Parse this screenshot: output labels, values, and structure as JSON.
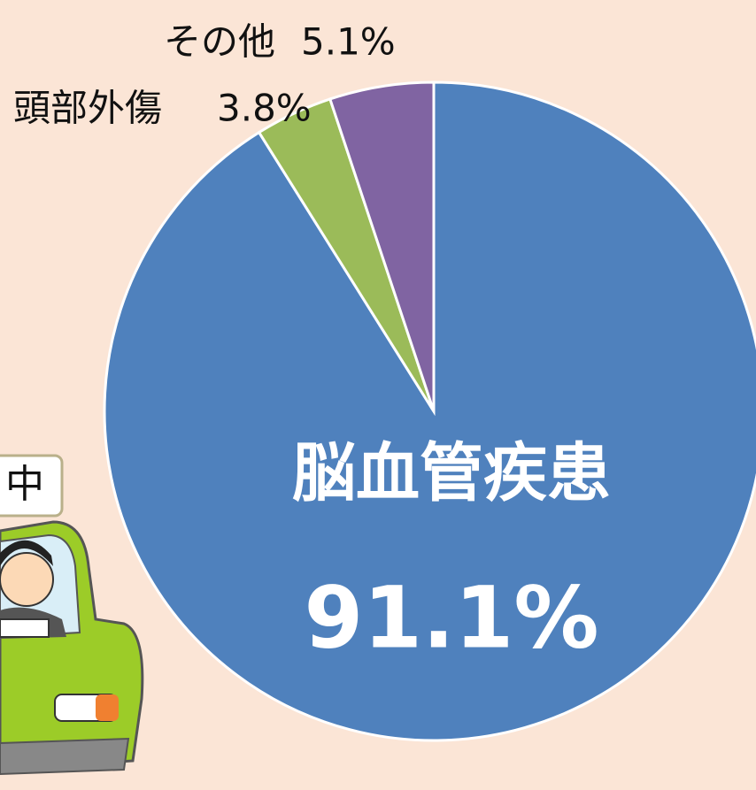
{
  "chart_data": {
    "type": "pie",
    "categories": [
      "脳血管疾患",
      "頭部外傷",
      "その他"
    ],
    "values": [
      91.1,
      3.8,
      5.1
    ],
    "value_labels": [
      "91.1%",
      "3.8%",
      "5.1%"
    ],
    "colors": [
      "#4f81bd",
      "#9bbb59",
      "#8064a2"
    ],
    "annotation": "中"
  }
}
